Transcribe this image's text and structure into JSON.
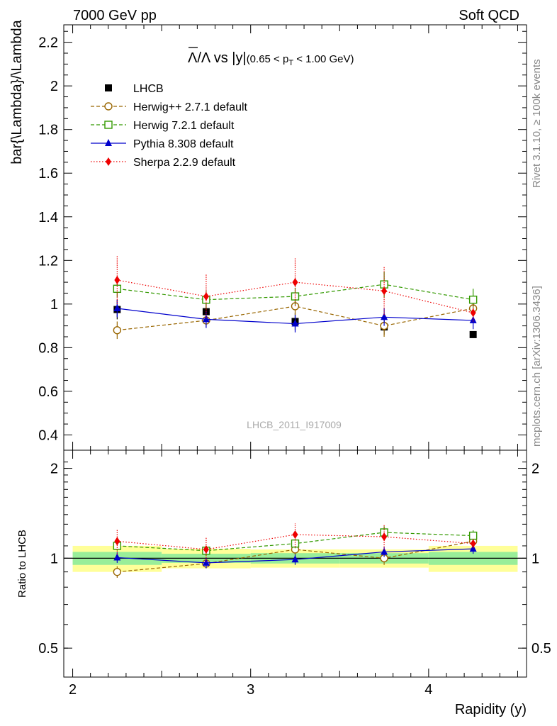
{
  "header": {
    "left": "7000 GeV pp",
    "right": "Soft QCD"
  },
  "title": {
    "main": "Λ/Λ vs |y|",
    "sub": "(0.65 < p",
    "sub_sub": "T",
    "sub_end": " < 1.00 GeV)"
  },
  "side_labels": {
    "rivet": "Rivet 3.1.10, ≥ 100k events",
    "mcplots": "mcplots.cern.ch [arXiv:1306.3436]"
  },
  "watermark": "LHCB_2011_I917009",
  "colors": {
    "band_outer": "#ffff99",
    "band_inner": "#99ee99",
    "data": "#000000"
  },
  "chart_data": [
    {
      "type": "scatter",
      "ylabel": "bar{\\Lambda}/\\Lambda",
      "ylim": [
        0.33,
        2.28
      ],
      "xlim": [
        1.95,
        4.55
      ],
      "yticks": [
        "0.4",
        "0.6",
        "0.8",
        "1",
        "1.2",
        "1.4",
        "1.6",
        "1.8",
        "2",
        "2.2"
      ],
      "ytick_values": [
        0.4,
        0.6,
        0.8,
        1.0,
        1.2,
        1.4,
        1.6,
        1.8,
        2.0,
        2.2
      ],
      "legend": "top-left",
      "x": [
        2.25,
        2.75,
        3.25,
        3.75,
        4.25
      ],
      "series": [
        {
          "name": "LHCB",
          "color": "#000000",
          "marker": "square",
          "values": [
            0.975,
            0.965,
            0.92,
            0.895,
            0.86
          ],
          "err": [
            0.045,
            0.035,
            0.04,
            0.035,
            0.0
          ]
        },
        {
          "name": "Herwig++ 2.7.1 default",
          "color": "#996600",
          "marker": "circle-open",
          "line": "dashed",
          "values": [
            0.88,
            0.925,
            0.99,
            0.9,
            0.98
          ],
          "err": [
            0.04,
            0.03,
            0.04,
            0.05,
            0.03
          ]
        },
        {
          "name": "Herwig 7.2.1 default",
          "color": "#339900",
          "marker": "square-open",
          "line": "dashed",
          "values": [
            1.07,
            1.02,
            1.035,
            1.09,
            1.02
          ],
          "err": [
            0.04,
            0.04,
            0.04,
            0.06,
            0.05
          ]
        },
        {
          "name": "Pythia 8.308 default",
          "color": "#0000cc",
          "marker": "triangle",
          "line": "solid",
          "values": [
            0.98,
            0.93,
            0.91,
            0.94,
            0.925
          ],
          "err": [
            0.04,
            0.04,
            0.04,
            0.04,
            0.04
          ]
        },
        {
          "name": "Sherpa 2.2.9 default",
          "color": "#ee0000",
          "marker": "diamond",
          "line": "dotted",
          "values": [
            1.11,
            1.035,
            1.1,
            1.06,
            0.96
          ],
          "err": [
            0.11,
            0.1,
            0.11,
            0.11,
            0.04
          ]
        }
      ]
    },
    {
      "type": "scatter",
      "ylabel": "Ratio to LHCB",
      "xlabel": "Rapidity (y)",
      "ylim": [
        0.4,
        2.3
      ],
      "log_y": true,
      "xlim": [
        1.95,
        4.55
      ],
      "xticks": [
        "2",
        "3",
        "4"
      ],
      "xtick_values": [
        2,
        3,
        4
      ],
      "yticks": [
        "0.5",
        "1",
        "2"
      ],
      "ytick_values": [
        0.5,
        1.0,
        2.0
      ],
      "bands": [
        {
          "x0": 2.0,
          "x1": 2.5,
          "inner": [
            0.95,
            1.05
          ],
          "outer": [
            0.9,
            1.1
          ]
        },
        {
          "x0": 2.5,
          "x1": 3.0,
          "inner": [
            0.965,
            1.035
          ],
          "outer": [
            0.925,
            1.075
          ]
        },
        {
          "x0": 3.0,
          "x1": 3.5,
          "inner": [
            0.96,
            1.04
          ],
          "outer": [
            0.93,
            1.07
          ]
        },
        {
          "x0": 3.5,
          "x1": 4.0,
          "inner": [
            0.96,
            1.04
          ],
          "outer": [
            0.93,
            1.07
          ]
        },
        {
          "x0": 4.0,
          "x1": 4.5,
          "inner": [
            0.95,
            1.05
          ],
          "outer": [
            0.9,
            1.1
          ]
        }
      ],
      "x": [
        2.25,
        2.75,
        3.25,
        3.75,
        4.25
      ],
      "series": [
        {
          "name": "Herwig++ 2.7.1 default",
          "color": "#996600",
          "marker": "circle-open",
          "line": "dashed",
          "values": [
            0.9,
            0.96,
            1.07,
            1.0,
            1.14
          ],
          "err": [
            0.04,
            0.03,
            0.04,
            0.05,
            0.03
          ]
        },
        {
          "name": "Herwig 7.2.1 default",
          "color": "#339900",
          "marker": "square-open",
          "line": "dashed",
          "values": [
            1.1,
            1.06,
            1.12,
            1.22,
            1.19
          ],
          "err": [
            0.04,
            0.04,
            0.04,
            0.06,
            0.05
          ]
        },
        {
          "name": "Pythia 8.308 default",
          "color": "#0000cc",
          "marker": "triangle",
          "line": "solid",
          "values": [
            1.005,
            0.965,
            0.99,
            1.05,
            1.075
          ],
          "err": [
            0.04,
            0.04,
            0.04,
            0.04,
            0.04
          ]
        },
        {
          "name": "Sherpa 2.2.9 default",
          "color": "#ee0000",
          "marker": "diamond",
          "line": "dotted",
          "values": [
            1.14,
            1.07,
            1.2,
            1.18,
            1.12
          ],
          "err": [
            0.11,
            0.1,
            0.11,
            0.11,
            0.04
          ]
        }
      ]
    }
  ]
}
